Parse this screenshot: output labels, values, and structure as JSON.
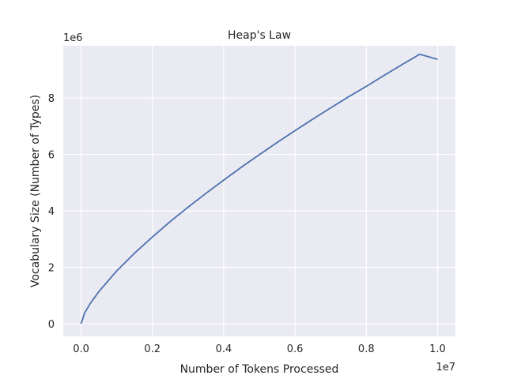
{
  "chart_data": {
    "type": "line",
    "title": "Heap's Law",
    "xlabel": "Number of Tokens Processed",
    "ylabel": "Vocabulary Size (Number of Types)",
    "x_offset_label": "1e7",
    "y_offset_label": "1e6",
    "xlim": [
      -500000,
      10500000
    ],
    "ylim": [
      -450000,
      9850000
    ],
    "x_ticks": [
      0,
      2000000,
      4000000,
      6000000,
      8000000,
      10000000
    ],
    "x_tick_labels": [
      "0.0",
      "0.2",
      "0.4",
      "0.6",
      "0.8",
      "1.0"
    ],
    "y_ticks": [
      0,
      2000000,
      4000000,
      6000000,
      8000000
    ],
    "y_tick_labels": [
      "0",
      "2",
      "4",
      "6",
      "8"
    ],
    "grid": true,
    "background": "#eaeaf2",
    "series": [
      {
        "color": "#4c72b0",
        "x": [
          0,
          100000,
          250000,
          500000,
          1000000,
          1500000,
          2000000,
          2500000,
          3000000,
          3500000,
          4000000,
          4500000,
          5000000,
          5500000,
          6000000,
          6500000,
          7000000,
          7500000,
          8000000,
          8500000,
          9000000,
          9500000,
          10000000
        ],
        "y": [
          0,
          380000,
          700000,
          1140000,
          1870000,
          2500000,
          3070000,
          3620000,
          4130000,
          4620000,
          5090000,
          5550000,
          5990000,
          6420000,
          6840000,
          7250000,
          7650000,
          8040000,
          8410000,
          8800000,
          9180000,
          9550000,
          9370000
        ]
      }
    ]
  }
}
